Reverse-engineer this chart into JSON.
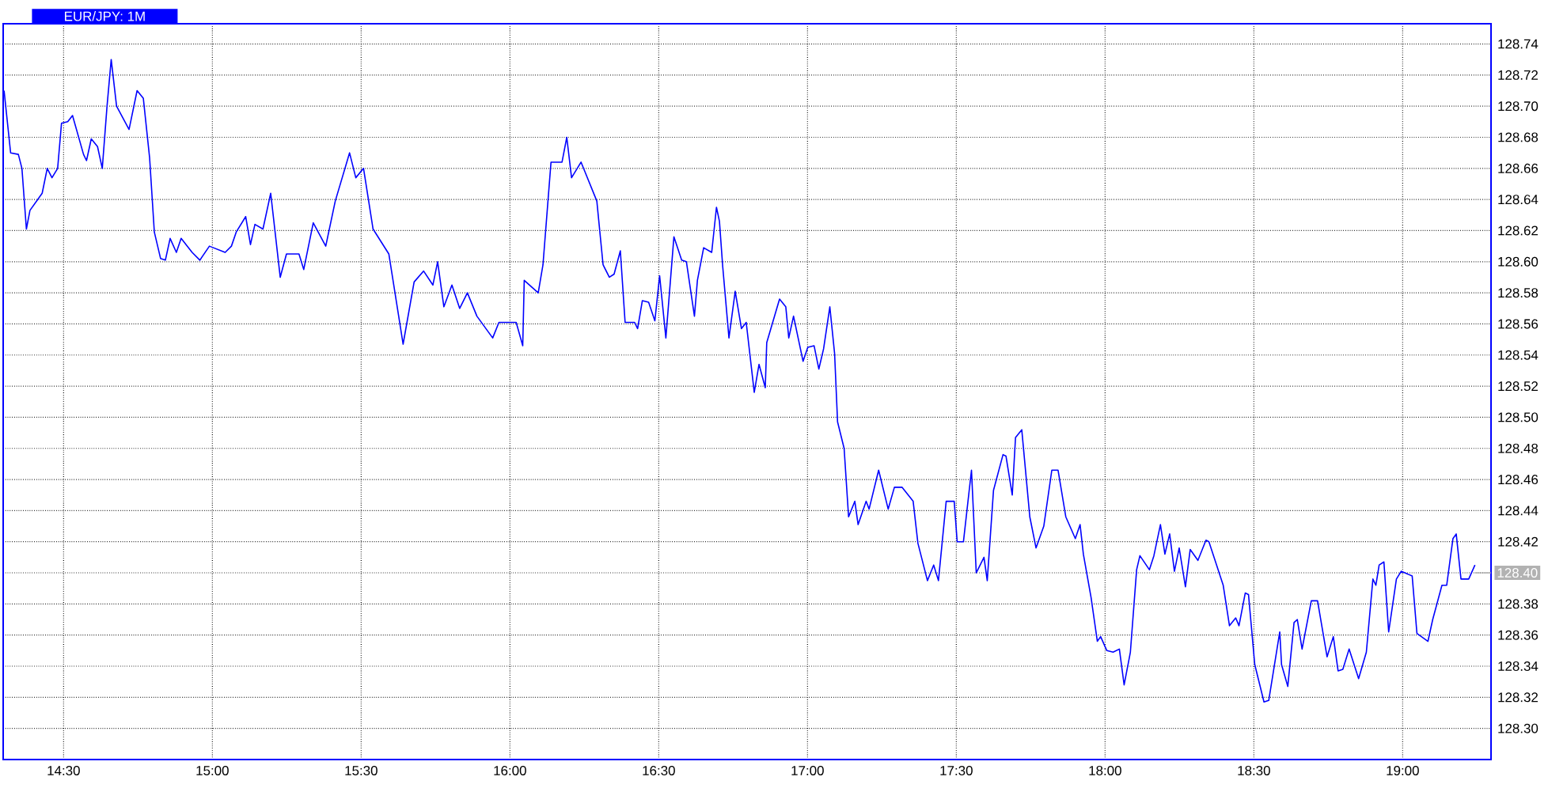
{
  "chart_data": {
    "type": "line",
    "title": "EUR/JPY: 1M",
    "x": [
      14.3,
      14.322,
      14.348,
      14.36,
      14.375,
      14.387,
      14.428,
      14.445,
      14.461,
      14.48,
      14.493,
      14.514,
      14.53,
      14.567,
      14.577,
      14.593,
      14.614,
      14.63,
      14.646,
      14.66,
      14.678,
      14.72,
      14.747,
      14.768,
      14.789,
      14.805,
      14.826,
      14.842,
      14.858,
      14.879,
      14.895,
      14.932,
      14.958,
      14.99,
      15.043,
      15.064,
      15.08,
      15.112,
      15.128,
      15.143,
      15.17,
      15.196,
      15.228,
      15.249,
      15.291,
      15.307,
      15.339,
      15.381,
      15.413,
      15.461,
      15.482,
      15.508,
      15.54,
      15.593,
      15.641,
      15.678,
      15.71,
      15.741,
      15.757,
      15.778,
      15.805,
      15.831,
      15.857,
      15.889,
      15.942,
      15.963,
      16.021,
      16.043,
      16.048,
      16.095,
      16.111,
      16.138,
      16.175,
      16.191,
      16.207,
      16.239,
      16.292,
      16.313,
      16.334,
      16.35,
      16.371,
      16.387,
      16.419,
      16.429,
      16.445,
      16.466,
      16.487,
      16.503,
      16.524,
      16.551,
      16.577,
      16.593,
      16.62,
      16.63,
      16.651,
      16.678,
      16.694,
      16.704,
      16.715,
      16.736,
      16.757,
      16.778,
      16.794,
      16.821,
      16.837,
      16.858,
      16.863,
      16.906,
      16.927,
      16.937,
      16.953,
      16.985,
      17.001,
      17.022,
      17.038,
      17.054,
      17.075,
      17.091,
      17.101,
      17.123,
      17.138,
      17.159,
      17.17,
      17.197,
      17.207,
      17.239,
      17.271,
      17.292,
      17.318,
      17.355,
      17.371,
      17.403,
      17.424,
      17.44,
      17.466,
      17.493,
      17.503,
      17.524,
      17.551,
      17.567,
      17.593,
      17.604,
      17.625,
      17.657,
      17.667,
      17.688,
      17.699,
      17.72,
      17.747,
      17.768,
      17.794,
      17.821,
      17.842,
      17.868,
      17.9,
      17.916,
      17.927,
      17.953,
      17.974,
      17.985,
      18.006,
      18.027,
      18.048,
      18.064,
      18.085,
      18.106,
      18.117,
      18.149,
      18.164,
      18.186,
      18.201,
      18.217,
      18.233,
      18.249,
      18.27,
      18.286,
      18.312,
      18.339,
      18.349,
      18.397,
      18.418,
      18.439,
      18.45,
      18.471,
      18.482,
      18.503,
      18.534,
      18.55,
      18.587,
      18.593,
      18.614,
      18.635,
      18.646,
      18.662,
      18.693,
      18.714,
      18.746,
      18.767,
      18.783,
      18.799,
      18.82,
      18.852,
      18.878,
      18.9,
      18.91,
      18.921,
      18.937,
      18.953,
      18.979,
      18.995,
      19.032,
      19.048,
      19.085,
      19.101,
      19.132,
      19.148,
      19.169,
      19.18,
      19.196,
      19.222,
      19.243
    ],
    "values": [
      128.71,
      128.67,
      128.669,
      128.66,
      128.621,
      128.633,
      128.644,
      128.66,
      128.654,
      128.66,
      128.689,
      128.69,
      128.694,
      128.669,
      128.665,
      128.679,
      128.674,
      128.66,
      128.7,
      128.73,
      128.7,
      128.685,
      128.71,
      128.705,
      128.667,
      128.619,
      128.602,
      128.601,
      128.615,
      128.606,
      128.615,
      128.606,
      128.601,
      128.61,
      128.606,
      128.61,
      128.619,
      128.629,
      128.611,
      128.624,
      128.621,
      128.644,
      128.59,
      128.605,
      128.605,
      128.595,
      128.625,
      128.61,
      128.639,
      128.67,
      128.654,
      128.66,
      128.621,
      128.605,
      128.547,
      128.587,
      128.594,
      128.585,
      128.6,
      128.571,
      128.585,
      128.57,
      128.58,
      128.565,
      128.551,
      128.561,
      128.561,
      128.546,
      128.588,
      128.58,
      128.598,
      128.664,
      128.664,
      128.68,
      128.654,
      128.664,
      128.639,
      128.598,
      128.59,
      128.592,
      128.607,
      128.561,
      128.561,
      128.557,
      128.575,
      128.574,
      128.562,
      128.591,
      128.551,
      128.616,
      128.601,
      128.6,
      128.565,
      128.588,
      128.609,
      128.606,
      128.635,
      128.626,
      128.597,
      128.551,
      128.581,
      128.557,
      128.561,
      128.516,
      128.534,
      128.519,
      128.548,
      128.576,
      128.571,
      128.551,
      128.565,
      128.536,
      128.545,
      128.546,
      128.531,
      128.544,
      128.571,
      128.541,
      128.497,
      128.48,
      128.436,
      128.446,
      128.431,
      128.446,
      128.441,
      128.466,
      128.441,
      128.455,
      128.455,
      128.446,
      128.419,
      128.395,
      128.405,
      128.395,
      128.446,
      128.446,
      128.42,
      128.42,
      128.466,
      128.4,
      128.41,
      128.395,
      128.453,
      128.476,
      128.475,
      128.45,
      128.487,
      128.492,
      128.436,
      128.416,
      128.43,
      128.466,
      128.466,
      128.436,
      128.422,
      128.431,
      128.412,
      128.384,
      128.356,
      128.359,
      128.35,
      128.349,
      128.351,
      128.328,
      128.349,
      128.402,
      128.411,
      128.402,
      128.411,
      128.431,
      128.412,
      128.425,
      128.401,
      128.416,
      128.391,
      128.415,
      128.408,
      128.421,
      128.42,
      128.392,
      128.366,
      128.371,
      128.366,
      128.387,
      128.386,
      128.341,
      128.317,
      128.318,
      128.362,
      128.341,
      128.327,
      128.368,
      128.37,
      128.351,
      128.382,
      128.382,
      128.346,
      128.359,
      128.337,
      128.338,
      128.351,
      128.332,
      128.349,
      128.396,
      128.392,
      128.405,
      128.407,
      128.362,
      128.396,
      128.401,
      128.398,
      128.361,
      128.356,
      128.37,
      128.392,
      128.392,
      128.422,
      128.425,
      128.396,
      128.396,
      128.405
    ],
    "color": "#0000ff",
    "xlim": [
      14.297,
      19.297
    ],
    "ylim": [
      128.28,
      128.753
    ],
    "xticks": [
      {
        "value": 14.5,
        "label": "14:30"
      },
      {
        "value": 15.0,
        "label": "15:00"
      },
      {
        "value": 15.5,
        "label": "15:30"
      },
      {
        "value": 16.0,
        "label": "16:00"
      },
      {
        "value": 16.5,
        "label": "16:30"
      },
      {
        "value": 17.0,
        "label": "17:00"
      },
      {
        "value": 17.5,
        "label": "17:30"
      },
      {
        "value": 18.0,
        "label": "18:00"
      },
      {
        "value": 18.5,
        "label": "18:30"
      },
      {
        "value": 19.0,
        "label": "19:00"
      }
    ],
    "yticks": [
      {
        "value": 128.3,
        "label": "128.30"
      },
      {
        "value": 128.32,
        "label": "128.32"
      },
      {
        "value": 128.34,
        "label": "128.34"
      },
      {
        "value": 128.36,
        "label": "128.36"
      },
      {
        "value": 128.38,
        "label": "128.38"
      },
      {
        "value": 128.4,
        "label": null
      },
      {
        "value": 128.42,
        "label": "128.42"
      },
      {
        "value": 128.44,
        "label": "128.44"
      },
      {
        "value": 128.46,
        "label": "128.46"
      },
      {
        "value": 128.48,
        "label": "128.48"
      },
      {
        "value": 128.5,
        "label": "128.50"
      },
      {
        "value": 128.52,
        "label": "128.52"
      },
      {
        "value": 128.54,
        "label": "128.54"
      },
      {
        "value": 128.56,
        "label": "128.56"
      },
      {
        "value": 128.58,
        "label": "128.58"
      },
      {
        "value": 128.6,
        "label": "128.60"
      },
      {
        "value": 128.62,
        "label": "128.62"
      },
      {
        "value": 128.64,
        "label": "128.64"
      },
      {
        "value": 128.66,
        "label": "128.66"
      },
      {
        "value": 128.68,
        "label": "128.68"
      },
      {
        "value": 128.7,
        "label": "128.70"
      },
      {
        "value": 128.72,
        "label": "128.72"
      },
      {
        "value": 128.74,
        "label": "128.74"
      }
    ],
    "grid": true,
    "annotations": [
      {
        "text": "128.40",
        "x": 19.243,
        "y": 128.4
      }
    ]
  }
}
